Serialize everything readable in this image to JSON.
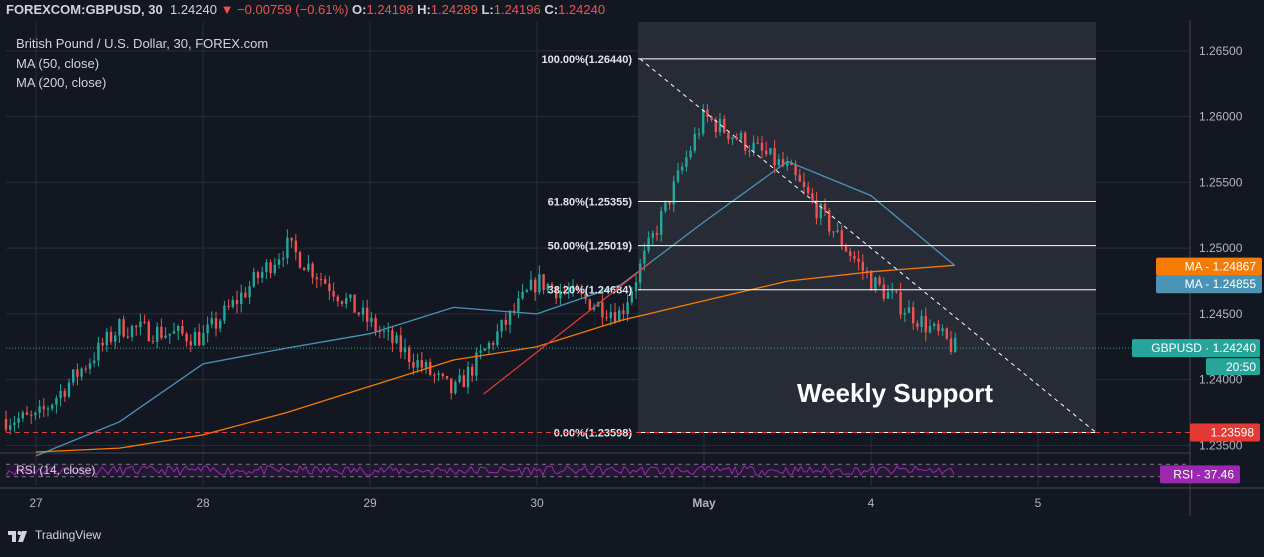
{
  "header": {
    "symbol": "FOREXCOM:GBPUSD, 30",
    "last": "1.24240",
    "change": "▼ −0.00759 (−0.61%)",
    "o_label": "O:",
    "o": "1.24198",
    "h_label": "H:",
    "h": "1.24289",
    "l_label": "L:",
    "l": "1.24196",
    "c_label": "C:",
    "c": "1.24240"
  },
  "legend": {
    "title": "British Pound / U.S. Dollar, 30, FOREX.com",
    "ma50": "MA (50, close)",
    "ma200": "MA (200, close)"
  },
  "rsi": {
    "label": "RSI (14, close)",
    "badge_label": "RSI",
    "badge_value": "37.46",
    "value": 37.46
  },
  "branding": {
    "name": "TradingView",
    "icon": "tradingview-logo-icon"
  },
  "colors": {
    "background": "#131722",
    "up": "#26a69a",
    "down": "#ef5350",
    "ma50": "#4a93b4",
    "ma200": "#f57c00",
    "fib": "#ffffff",
    "support": "#e53935",
    "rsi": "#9c27b0"
  },
  "chart_data": {
    "type": "line",
    "chart_kind": "candlestick",
    "ylim": [
      1.2345,
      1.2672
    ],
    "y_ticks": [
      "1.26500",
      "1.26000",
      "1.25500",
      "1.25000",
      "1.24500",
      "1.24000",
      "1.23500"
    ],
    "x_ticks": [
      "27",
      "28",
      "29",
      "30",
      "May",
      "4",
      "5"
    ],
    "grid": true,
    "x": [
      "27",
      "27.5",
      "28",
      "28.5",
      "29",
      "29.5",
      "30",
      "30.5",
      "May",
      "May.5",
      "4",
      "4.5",
      "5"
    ],
    "series": [
      {
        "name": "MA (50, close)",
        "values": [
          1.2342,
          1.2368,
          1.2412,
          1.2424,
          1.2435,
          1.2455,
          1.245,
          1.2472,
          1.252,
          1.2566,
          1.254,
          1.2487,
          null
        ],
        "last_label": "MA",
        "last_value": "1.24855"
      },
      {
        "name": "MA (200, close)",
        "values": [
          1.2345,
          1.2348,
          1.2358,
          1.2375,
          1.2395,
          1.2415,
          1.2425,
          1.2445,
          1.246,
          1.2475,
          1.2482,
          1.2487,
          null
        ],
        "last_label": "MA",
        "last_value": "1.24867"
      },
      {
        "name": "GBPUSD",
        "values": [
          1.237,
          1.244,
          1.2432,
          1.2502,
          1.2443,
          1.239,
          1.2475,
          1.245,
          1.26,
          1.256,
          1.2475,
          1.2424,
          null
        ],
        "last_label": "GBPUSD",
        "last_value": "1.24240",
        "countdown": "20:50"
      }
    ],
    "fibonacci": [
      {
        "label": "100.00%(1.26440)",
        "value": 1.2644
      },
      {
        "label": "61.80%(1.25355)",
        "value": 1.25355
      },
      {
        "label": "50.00%(1.25019)",
        "value": 1.25019
      },
      {
        "label": "38.20%(1.24684)",
        "value": 1.24684
      },
      {
        "label": "0.00%(1.23598)",
        "value": 1.23598
      }
    ],
    "support": {
      "value": 1.23598,
      "label": "1.23598"
    },
    "annotations": [
      "Weekly Support"
    ]
  }
}
